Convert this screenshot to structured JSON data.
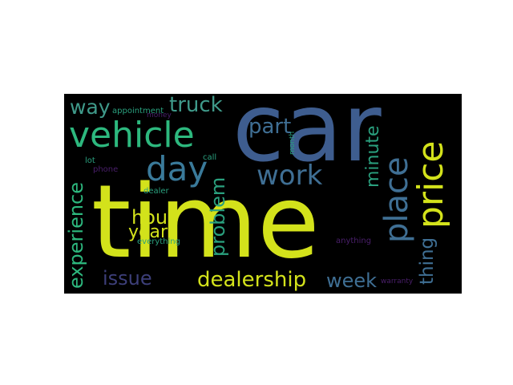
{
  "wordcloud": {
    "words": {
      "car": {
        "text": "car",
        "color": "#3e5d8f"
      },
      "time": {
        "text": "time",
        "color": "#d3e21b"
      },
      "vehicle": {
        "text": "vehicle",
        "color": "#2db87e"
      },
      "day": {
        "text": "day",
        "color": "#3a7a9a"
      },
      "truck": {
        "text": "truck",
        "color": "#3f9a8a"
      },
      "way": {
        "text": "way",
        "color": "#3f9a8a"
      },
      "part": {
        "text": "part",
        "color": "#3f6f94"
      },
      "work": {
        "text": "work",
        "color": "#3f6f94"
      },
      "hour": {
        "text": "hour",
        "color": "#d3e21b"
      },
      "year": {
        "text": "year",
        "color": "#d3e21b"
      },
      "issue": {
        "text": "issue",
        "color": "#3d3f7a"
      },
      "dealership": {
        "text": "dealership",
        "color": "#d3e21b"
      },
      "week": {
        "text": "week",
        "color": "#3f6f94"
      },
      "appointment": {
        "text": "appointment",
        "color": "#2aa07e"
      },
      "money": {
        "text": "money",
        "color": "#4a1f6b"
      },
      "lot": {
        "text": "lot",
        "color": "#2aa07e"
      },
      "phone": {
        "text": "phone",
        "color": "#4a1f6b"
      },
      "call": {
        "text": "call",
        "color": "#2aa07e"
      },
      "dealer": {
        "text": "dealer",
        "color": "#2aa07e"
      },
      "everything": {
        "text": "everything",
        "color": "#2aa07e"
      },
      "anything": {
        "text": "anything",
        "color": "#4a1f6b"
      },
      "warranty": {
        "text": "warranty",
        "color": "#4a1f6b"
      },
      "experience": {
        "text": "experience",
        "color": "#2db87e"
      },
      "problem": {
        "text": "problem",
        "color": "#2aa07e"
      },
      "minute": {
        "text": "minute",
        "color": "#2aa07e"
      },
      "place": {
        "text": "place",
        "color": "#3f6f94"
      },
      "price": {
        "text": "price",
        "color": "#d3e21b"
      },
      "thing": {
        "text": "thing",
        "color": "#3f6f94"
      },
      "month": {
        "text": "month",
        "color": "#2aa07e"
      }
    }
  }
}
